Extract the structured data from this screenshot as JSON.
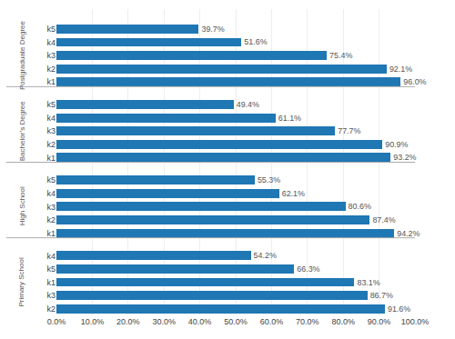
{
  "chart_data": {
    "type": "bar",
    "orientation": "horizontal",
    "data_labels": true,
    "grid": true,
    "groups": [
      {
        "label": "Postgraduate Degree",
        "categories": [
          "k5",
          "k4",
          "k3",
          "k2",
          "k1"
        ],
        "values": [
          39.7,
          51.6,
          75.4,
          92.1,
          96.0
        ],
        "value_labels": [
          "39.7%",
          "51.6%",
          "75.4%",
          "92.1%",
          "96.0%"
        ]
      },
      {
        "label": "Bachelor’s Degree",
        "categories": [
          "k5",
          "k4",
          "k3",
          "k2",
          "k1"
        ],
        "values": [
          49.4,
          61.1,
          77.7,
          90.9,
          93.2
        ],
        "value_labels": [
          "49.4%",
          "61.1%",
          "77.7%",
          "90.9%",
          "93.2%"
        ]
      },
      {
        "label": "High School",
        "categories": [
          "k5",
          "k4",
          "k3",
          "k2",
          "k1"
        ],
        "values": [
          55.3,
          62.1,
          80.6,
          87.4,
          94.2
        ],
        "value_labels": [
          "55.3%",
          "62.1%",
          "80.6%",
          "87.4%",
          "94.2%"
        ]
      },
      {
        "label": "Primary School",
        "categories": [
          "k4",
          "k5",
          "k1",
          "k3",
          "k2"
        ],
        "values": [
          54.2,
          66.3,
          83.1,
          86.7,
          91.6
        ],
        "value_labels": [
          "54.2%",
          "66.3%",
          "83.1%",
          "86.7%",
          "91.6%"
        ]
      }
    ],
    "xlim": [
      0,
      100
    ],
    "xticks": [
      {
        "value": 0,
        "label": "0.0%"
      },
      {
        "value": 10,
        "label": "10.0%"
      },
      {
        "value": 20,
        "label": "20.0%"
      },
      {
        "value": 30,
        "label": "30.0%"
      },
      {
        "value": 40,
        "label": "40.0%"
      },
      {
        "value": 50,
        "label": "50.0%"
      },
      {
        "value": 60,
        "label": "60.0%"
      },
      {
        "value": 70,
        "label": "70.0%"
      },
      {
        "value": 80,
        "label": "80.0%"
      },
      {
        "value": 90,
        "label": "90.0%"
      },
      {
        "value": 100,
        "label": "100.0%"
      }
    ]
  }
}
